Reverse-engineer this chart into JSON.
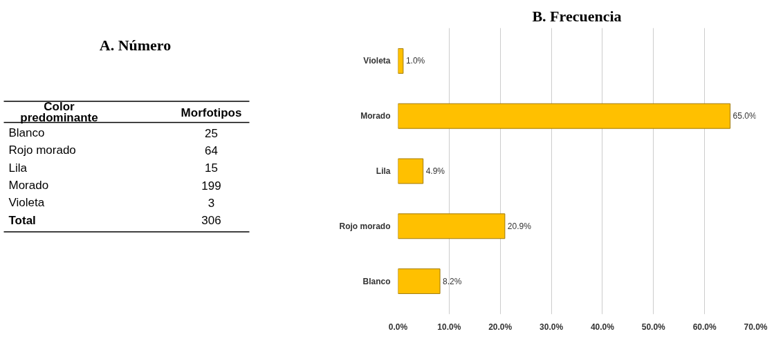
{
  "chart_data": [
    {
      "type": "other",
      "title": "A. Número",
      "xlabel": "Color predominante",
      "ylabel": "Morfotipos",
      "categories": [
        "Blanco",
        "Rojo morado",
        "Lila",
        "Morado",
        "Violeta",
        "Total"
      ],
      "values": [
        25,
        64,
        15,
        199,
        3,
        306
      ],
      "data_labels": true
    },
    {
      "type": "bar",
      "title": "B. Frecuencia",
      "orientation": "horizontal",
      "categories": [
        "Violeta",
        "Morado",
        "Lila",
        "Rojo morado",
        "Blanco"
      ],
      "values": [
        1.0,
        65.0,
        4.9,
        20.9,
        8.2
      ],
      "value_labels": [
        "1.0%",
        "65.0%",
        "4.9%",
        "20.9%",
        "8.2%"
      ],
      "color": "#ffc000",
      "xlim": [
        0,
        70
      ],
      "xticks": [
        {
          "value": 0,
          "label": "0.0%"
        },
        {
          "value": 10,
          "label": "10.0%"
        },
        {
          "value": 20,
          "label": "20.0%"
        },
        {
          "value": 30,
          "label": "30.0%"
        },
        {
          "value": 40,
          "label": "40.0%"
        },
        {
          "value": 50,
          "label": "50.0%"
        },
        {
          "value": 60,
          "label": "60.0%"
        },
        {
          "value": 70,
          "label": "70.0%"
        }
      ],
      "grid": "x"
    }
  ]
}
